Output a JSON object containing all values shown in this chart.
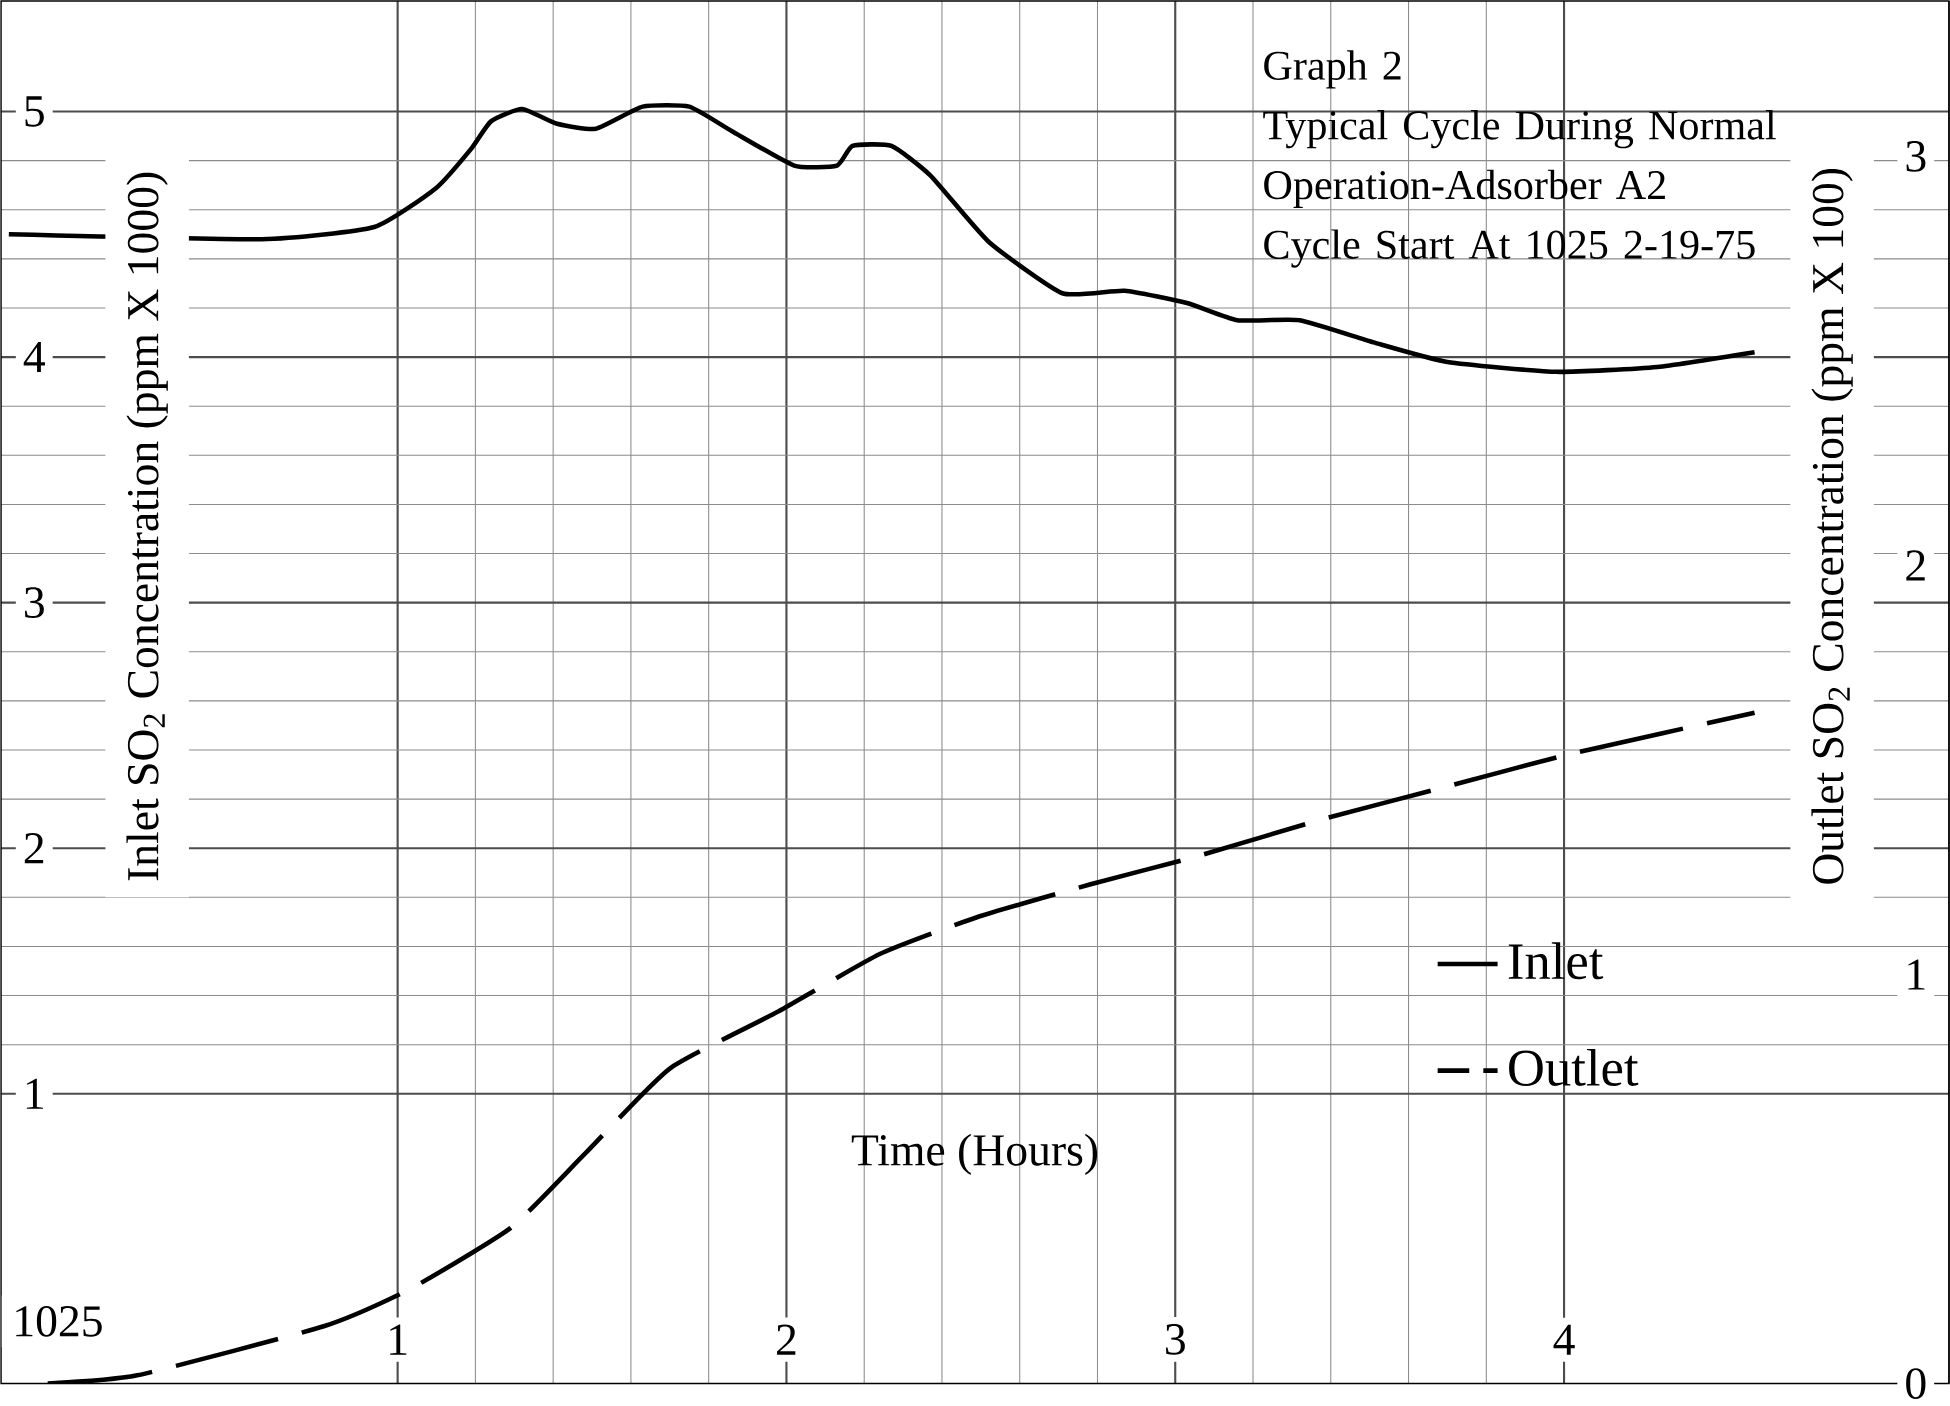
{
  "chart_data": {
    "type": "line",
    "title": "Graph 2",
    "subtitle": "Typical Cycle During Normal Operation-Adsorber A2",
    "xlabel": "Time (Hours)",
    "ylabel": "Inlet SO$_{2}$ Concentration (ppm X 1000)",
    "y2label": "Outlet SO$_{2}$ Concentration  (ppm X 100)",
    "annotations": [
      "Cycle Start At 1025  2-19-75",
      "1025"
    ],
    "xlim": [
      -0.02,
      4.99
    ],
    "xticks": [
      1,
      2,
      3,
      4
    ],
    "ylim": [
      -0.18,
      5.45
    ],
    "yticks": [
      1,
      2,
      3,
      4,
      5
    ],
    "y2lim": [
      0,
      3.38
    ],
    "y2ticks": [
      0,
      1,
      2,
      3
    ],
    "grid": true,
    "legend": "bottom right",
    "series": [
      {
        "name": "Inlet",
        "color": "#000000",
        "line_style": "solid",
        "x": [
          0,
          0.65,
          0.94,
          1.1,
          1.19,
          1.24,
          1.32,
          1.41,
          1.51,
          1.63,
          1.75,
          1.86,
          2.02,
          2.13,
          2.17,
          2.27,
          2.37,
          2.52,
          2.71,
          2.87,
          3.03,
          3.16,
          3.32,
          3.51,
          3.7,
          3.98,
          4.24,
          4.49
        ],
        "values": [
          4.5,
          4.48,
          4.53,
          4.69,
          4.85,
          4.96,
          5.01,
          4.95,
          4.93,
          5.02,
          5.02,
          4.92,
          4.78,
          4.78,
          4.86,
          4.86,
          4.74,
          4.47,
          4.26,
          4.27,
          4.22,
          4.15,
          4.15,
          4.06,
          3.98,
          3.94,
          3.96,
          4.02
        ]
      },
      {
        "name": "Outlet",
        "color": "#000000",
        "line_style": "dashed",
        "axis": "y2",
        "x": [
          0.1,
          0.33,
          0.81,
          1.03,
          1.29,
          1.48,
          1.7,
          1.98,
          2.24,
          2.49,
          2.78,
          3.06,
          3.38,
          3.7,
          4.02,
          4.49
        ],
        "values": [
          0,
          0.02,
          0.14,
          0.23,
          0.38,
          0.56,
          0.77,
          0.91,
          1.05,
          1.14,
          1.22,
          1.29,
          1.38,
          1.46,
          1.54,
          1.64
        ]
      }
    ]
  }
}
